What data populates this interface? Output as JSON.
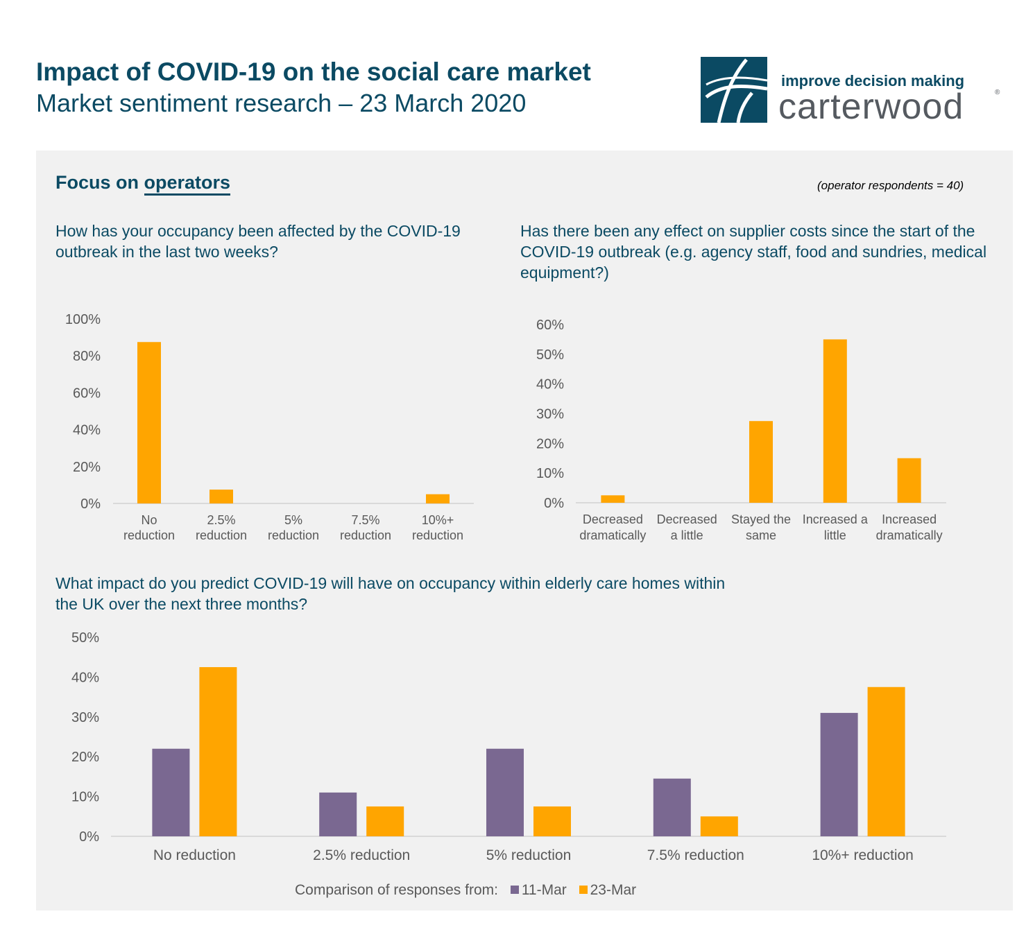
{
  "header": {
    "title": "Impact of COVID-19 on the social care market",
    "subtitle": "Market sentiment research – 23 March 2020"
  },
  "logo": {
    "tagline": "improve decision making",
    "brand": "carterwood",
    "mark": "®",
    "color": "#0b4a63"
  },
  "panel": {
    "focus_prefix": "Focus on",
    "focus_word": "operators",
    "respondents": "(operator respondents = 40)"
  },
  "colors": {
    "orange": "#ffa500",
    "purple": "#7a6891",
    "axis": "#d9d9d9",
    "text": "#595959"
  },
  "chart_data": [
    {
      "type": "bar",
      "title": "How has your occupancy been affected by the COVID-19 outbreak in the last two weeks?",
      "categories": [
        [
          "No",
          "reduction"
        ],
        [
          "2.5%",
          "reduction"
        ],
        [
          "5%",
          "reduction"
        ],
        [
          "7.5%",
          "reduction"
        ],
        [
          "10%+",
          "reduction"
        ]
      ],
      "values": [
        87.5,
        7.5,
        0,
        0,
        5
      ],
      "yticks": [
        "0%",
        "20%",
        "40%",
        "60%",
        "80%",
        "100%"
      ],
      "ylim": [
        0,
        100
      ]
    },
    {
      "type": "bar",
      "title": "Has there been any effect on supplier costs since the start of the COVID-19 outbreak (e.g. agency staff, food and sundries, medical equipment?)",
      "categories": [
        [
          "Decreased",
          "dramatically"
        ],
        [
          "Decreased",
          "a little"
        ],
        [
          "Stayed the",
          "same"
        ],
        [
          "Increased a",
          "little"
        ],
        [
          "Increased",
          "dramatically"
        ]
      ],
      "values": [
        2.5,
        0,
        27.5,
        55,
        15
      ],
      "yticks": [
        "0%",
        "10%",
        "20%",
        "30%",
        "40%",
        "50%",
        "60%"
      ],
      "ylim": [
        0,
        60
      ]
    },
    {
      "type": "bar",
      "title": "What impact do you predict COVID-19 will have on occupancy within elderly care homes within the UK over the next three months?",
      "categories": [
        "No reduction",
        "2.5% reduction",
        "5% reduction",
        "7.5% reduction",
        "10%+ reduction"
      ],
      "series": [
        {
          "name": "11-Mar",
          "values": [
            22,
            11,
            22,
            14.5,
            31
          ]
        },
        {
          "name": "23-Mar",
          "values": [
            42.5,
            7.5,
            7.5,
            5,
            37.5
          ]
        }
      ],
      "yticks": [
        "0%",
        "10%",
        "20%",
        "30%",
        "40%",
        "50%"
      ],
      "ylim": [
        0,
        50
      ],
      "legend_title": "Comparison of responses from:"
    }
  ]
}
